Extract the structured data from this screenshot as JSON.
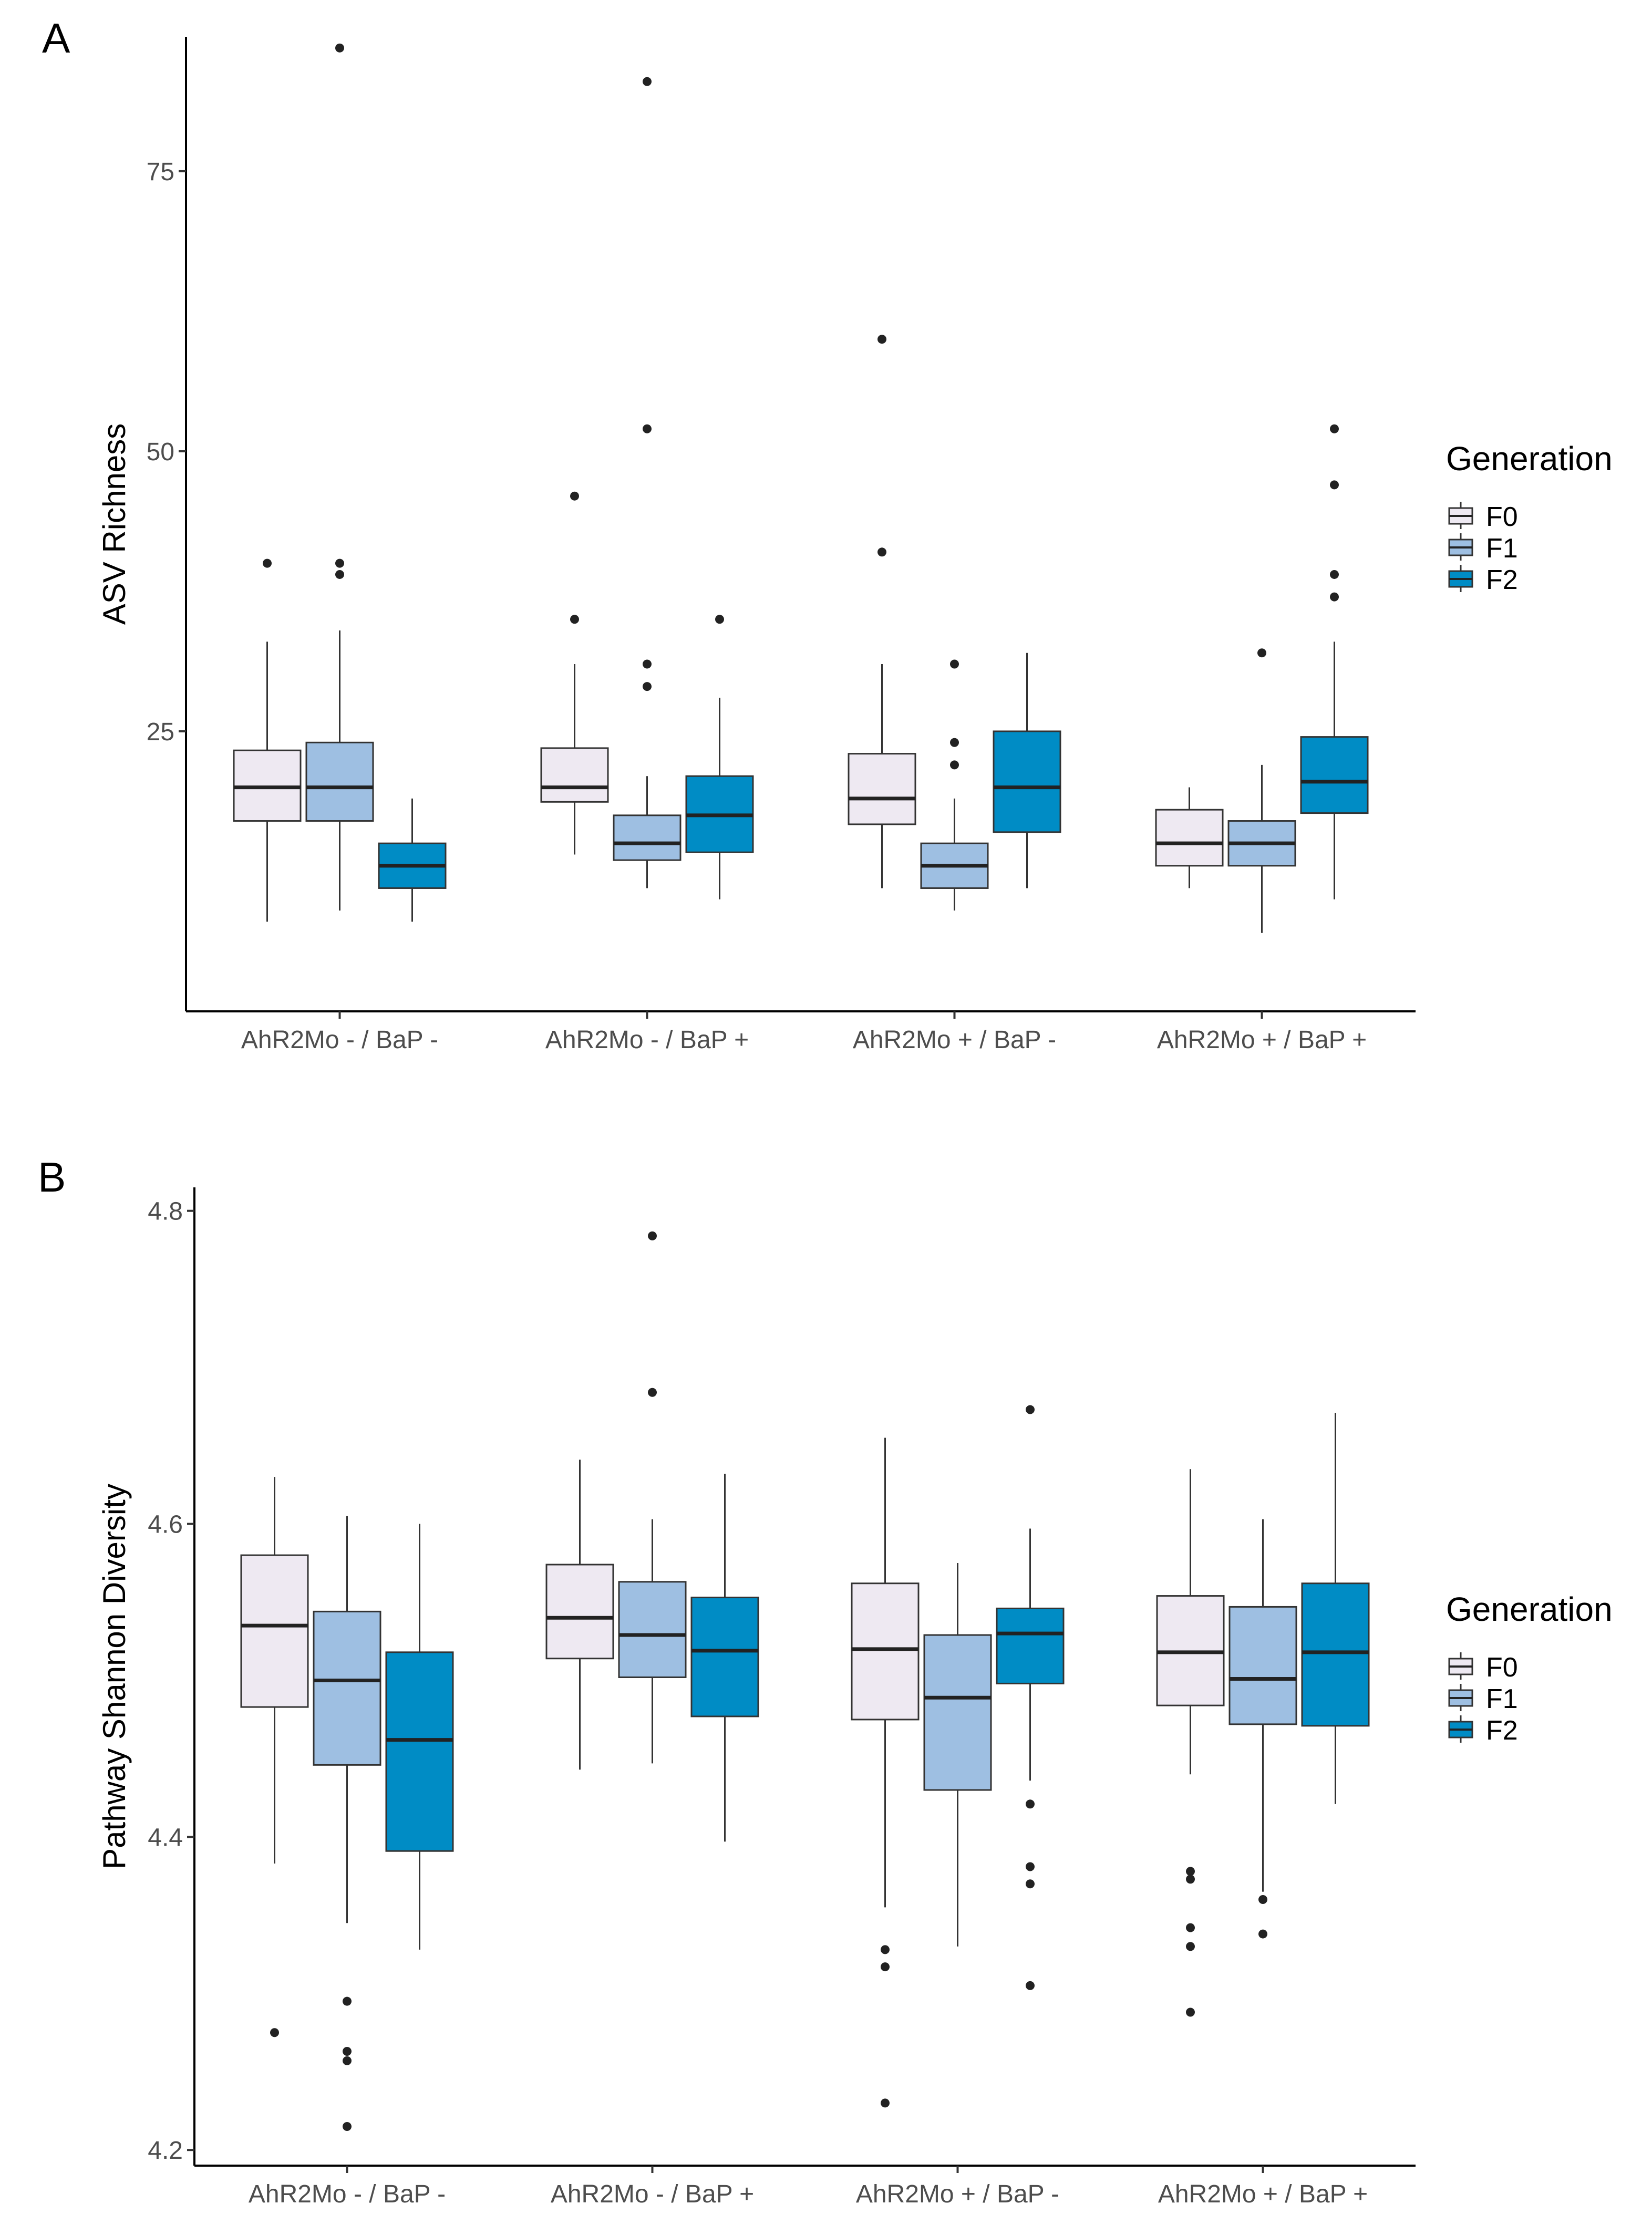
{
  "colors": {
    "F0": "#EEE9F2",
    "F1": "#9EBFE2",
    "F2": "#008CC5",
    "stroke": "#333333"
  },
  "chart_data": [
    {
      "panel_label": "A",
      "type": "boxplot",
      "ylabel": "ASV Richness",
      "ylim": [
        0,
        87
      ],
      "yticks": [
        "25",
        "50",
        "75"
      ],
      "categories": [
        "AhR2Mo - / BaP -",
        "AhR2Mo - / BaP +",
        "AhR2Mo + / BaP -",
        "AhR2Mo + / BaP +"
      ],
      "legend": {
        "title": "Generation",
        "entries": [
          "F0",
          "F1",
          "F2"
        ],
        "position": "right"
      },
      "series": [
        {
          "name": "F0",
          "boxes": [
            {
              "q1": 17,
              "median": 20,
              "q3": 23.3,
              "lo": 8,
              "hi": 33,
              "outliers": [
                40
              ]
            },
            {
              "q1": 18.7,
              "median": 20,
              "q3": 23.5,
              "lo": 14,
              "hi": 31,
              "outliers": [
                35,
                46
              ]
            },
            {
              "q1": 16.7,
              "median": 19,
              "q3": 23,
              "lo": 11,
              "hi": 31,
              "outliers": [
                41,
                60
              ]
            },
            {
              "q1": 13,
              "median": 15,
              "q3": 18,
              "lo": 11,
              "hi": 20,
              "outliers": []
            }
          ]
        },
        {
          "name": "F1",
          "boxes": [
            {
              "q1": 17,
              "median": 20,
              "q3": 24,
              "lo": 9,
              "hi": 34,
              "outliers": [
                39,
                40,
                86
              ]
            },
            {
              "q1": 13.5,
              "median": 15,
              "q3": 17.5,
              "lo": 11,
              "hi": 21,
              "outliers": [
                29,
                31,
                52,
                83
              ]
            },
            {
              "q1": 11,
              "median": 13,
              "q3": 15,
              "lo": 9,
              "hi": 19,
              "outliers": [
                22,
                24,
                31
              ]
            },
            {
              "q1": 13,
              "median": 15,
              "q3": 17,
              "lo": 7,
              "hi": 22,
              "outliers": [
                32
              ]
            }
          ]
        },
        {
          "name": "F2",
          "boxes": [
            {
              "q1": 11,
              "median": 13,
              "q3": 15,
              "lo": 8,
              "hi": 19,
              "outliers": []
            },
            {
              "q1": 14.2,
              "median": 17.5,
              "q3": 21,
              "lo": 10,
              "hi": 28,
              "outliers": [
                35
              ]
            },
            {
              "q1": 16,
              "median": 20,
              "q3": 25,
              "lo": 11,
              "hi": 32,
              "outliers": []
            },
            {
              "q1": 17.7,
              "median": 20.5,
              "q3": 24.5,
              "lo": 10,
              "hi": 33,
              "outliers": [
                37,
                39,
                47,
                52
              ]
            }
          ]
        }
      ]
    },
    {
      "panel_label": "B",
      "type": "boxplot",
      "ylabel": "Pathway Shannon Diversity",
      "ylim": [
        4.19,
        4.815
      ],
      "yticks": [
        "4.2",
        "4.4",
        "4.6",
        "4.8"
      ],
      "categories": [
        "AhR2Mo - / BaP -",
        "AhR2Mo - / BaP +",
        "AhR2Mo + / BaP -",
        "AhR2Mo + / BaP +"
      ],
      "legend": {
        "title": "Generation",
        "entries": [
          "F0",
          "F1",
          "F2"
        ],
        "position": "right"
      },
      "series": [
        {
          "name": "F0",
          "boxes": [
            {
              "q1": 4.483,
              "median": 4.535,
              "q3": 4.58,
              "lo": 4.383,
              "hi": 4.63,
              "outliers": [
                4.275
              ]
            },
            {
              "q1": 4.514,
              "median": 4.54,
              "q3": 4.574,
              "lo": 4.443,
              "hi": 4.641,
              "outliers": []
            },
            {
              "q1": 4.475,
              "median": 4.52,
              "q3": 4.562,
              "lo": 4.355,
              "hi": 4.655,
              "outliers": [
                4.23,
                4.317,
                4.328
              ]
            },
            {
              "q1": 4.484,
              "median": 4.518,
              "q3": 4.554,
              "lo": 4.44,
              "hi": 4.635,
              "outliers": [
                4.288,
                4.33,
                4.342,
                4.373,
                4.378
              ]
            }
          ]
        },
        {
          "name": "F1",
          "boxes": [
            {
              "q1": 4.446,
              "median": 4.5,
              "q3": 4.544,
              "lo": 4.345,
              "hi": 4.605,
              "outliers": [
                4.215,
                4.257,
                4.263,
                4.295
              ]
            },
            {
              "q1": 4.502,
              "median": 4.529,
              "q3": 4.563,
              "lo": 4.447,
              "hi": 4.603,
              "outliers": [
                4.684,
                4.784
              ]
            },
            {
              "q1": 4.43,
              "median": 4.489,
              "q3": 4.529,
              "lo": 4.33,
              "hi": 4.575,
              "outliers": []
            },
            {
              "q1": 4.472,
              "median": 4.501,
              "q3": 4.547,
              "lo": 4.365,
              "hi": 4.603,
              "outliers": [
                4.338,
                4.36
              ]
            }
          ]
        },
        {
          "name": "F2",
          "boxes": [
            {
              "q1": 4.391,
              "median": 4.462,
              "q3": 4.518,
              "lo": 4.328,
              "hi": 4.6,
              "outliers": []
            },
            {
              "q1": 4.477,
              "median": 4.519,
              "q3": 4.553,
              "lo": 4.397,
              "hi": 4.632,
              "outliers": []
            },
            {
              "q1": 4.498,
              "median": 4.53,
              "q3": 4.546,
              "lo": 4.436,
              "hi": 4.597,
              "outliers": [
                4.305,
                4.37,
                4.381,
                4.421,
                4.673
              ]
            },
            {
              "q1": 4.471,
              "median": 4.518,
              "q3": 4.562,
              "lo": 4.421,
              "hi": 4.671,
              "outliers": []
            }
          ]
        }
      ]
    }
  ]
}
